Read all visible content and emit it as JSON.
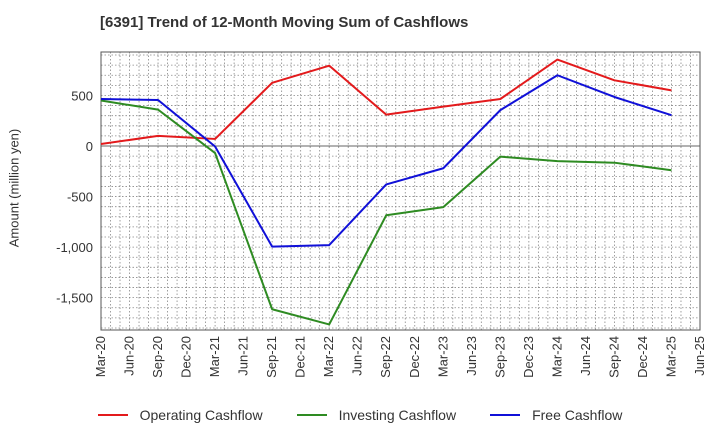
{
  "chart_data": {
    "type": "line",
    "title": "[6391]  Trend of 12-Month Moving Sum of Cashflows",
    "xlabel": "",
    "ylabel": "Amount (million yen)",
    "x": [
      "Mar-20",
      "Jun-20",
      "Sep-20",
      "Dec-20",
      "Mar-21",
      "Jun-21",
      "Sep-21",
      "Dec-21",
      "Mar-22",
      "Jun-22",
      "Sep-22",
      "Dec-22",
      "Mar-23",
      "Jun-23",
      "Sep-23",
      "Dec-23",
      "Mar-24",
      "Jun-24",
      "Sep-24",
      "Dec-24",
      "Mar-25",
      "Jun-25"
    ],
    "ylim": [
      -1820,
      930
    ],
    "yticks": [
      500,
      0,
      -500,
      -1000,
      -1500
    ],
    "ytick_labels": [
      "500",
      "0",
      "-500",
      "-1,000",
      "-1,500"
    ],
    "grid": true,
    "legend_position": "bottom",
    "series": [
      {
        "name": "Operating Cashflow",
        "color": "#e31a1c",
        "points": [
          [
            "Mar-20",
            20
          ],
          [
            "Sep-20",
            100
          ],
          [
            "Mar-21",
            70
          ],
          [
            "Sep-21",
            625
          ],
          [
            "Mar-22",
            795
          ],
          [
            "Sep-22",
            310
          ],
          [
            "Mar-23",
            390
          ],
          [
            "Sep-23",
            465
          ],
          [
            "Mar-24",
            855
          ],
          [
            "Sep-24",
            650
          ],
          [
            "Mar-25",
            550
          ]
        ]
      },
      {
        "name": "Investing Cashflow",
        "color": "#2e8b22",
        "points": [
          [
            "Mar-20",
            450
          ],
          [
            "Sep-20",
            360
          ],
          [
            "Mar-21",
            -70
          ],
          [
            "Sep-21",
            -1615
          ],
          [
            "Mar-22",
            -1765
          ],
          [
            "Sep-22",
            -685
          ],
          [
            "Mar-23",
            -605
          ],
          [
            "Sep-23",
            -105
          ],
          [
            "Mar-24",
            -150
          ],
          [
            "Sep-24",
            -165
          ],
          [
            "Mar-25",
            -240
          ]
        ]
      },
      {
        "name": "Free Cashflow",
        "color": "#1010d8",
        "points": [
          [
            "Mar-20",
            465
          ],
          [
            "Sep-20",
            455
          ],
          [
            "Mar-21",
            -5
          ],
          [
            "Sep-21",
            -995
          ],
          [
            "Mar-22",
            -980
          ],
          [
            "Sep-22",
            -380
          ],
          [
            "Mar-23",
            -220
          ],
          [
            "Sep-23",
            355
          ],
          [
            "Mar-24",
            700
          ],
          [
            "Sep-24",
            485
          ],
          [
            "Mar-25",
            305
          ]
        ]
      }
    ]
  }
}
